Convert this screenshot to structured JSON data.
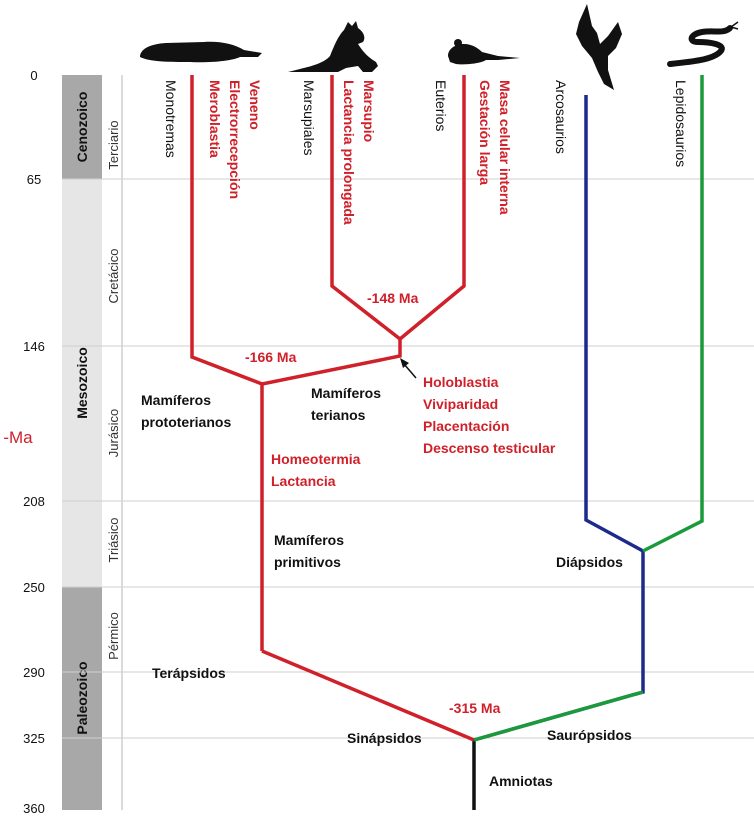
{
  "axis": {
    "title": "-Ma",
    "ticks": [
      "0",
      "65",
      "146",
      "208",
      "250",
      "290",
      "325",
      "360"
    ]
  },
  "eras": [
    "Cenozoico",
    "Mesozoico",
    "Paleozoico"
  ],
  "periods": [
    "Terciario",
    "Cretácico",
    "Jurásico",
    "Triásico",
    "Pérmico"
  ],
  "taxa": {
    "monotremas": "Monotremas",
    "marsupiales": "Marsupiales",
    "euterios": "Euterios",
    "arcosaurios": "Arcosaurios",
    "lepidosaurios": "Lepidosaurios"
  },
  "traits": {
    "monotremas": [
      "Veneno",
      "Electrorrecepción",
      "Meroblastia"
    ],
    "marsupiales": [
      "Marsupio",
      "Lactancia prolongada"
    ],
    "euterios": [
      "Masa celular interna",
      "Gestación larga"
    ],
    "terianos": [
      "Holoblastia",
      "Viviparidad",
      "Placentación",
      "Descenso testicular"
    ],
    "mamiferos": [
      "Homeotermia",
      "Lactancia"
    ]
  },
  "nodes": {
    "prototerianos": [
      "Mamíferos",
      "prototerianos"
    ],
    "terianos": [
      "Mamíferos",
      "terianos"
    ],
    "primitivos": [
      "Mamíferos",
      "primitivos"
    ],
    "terapsidos": "Terápsidos",
    "sinapsidos": "Sinápsidos",
    "sauropsidos": "Saurópsidos",
    "diapsidos": "Diápsidos",
    "amniotas": "Amniotas"
  },
  "dates": {
    "euterios_marsupiales": "-148 Ma",
    "mamiferos": "-166 Ma",
    "amniotas": "-315 Ma"
  },
  "icons": [
    "platypus-icon",
    "wallaby-icon",
    "rat-icon",
    "bird-icon",
    "snake-icon"
  ],
  "colors": {
    "synapsid": "#d0202a",
    "archosaur": "#1b2a8c",
    "lepidosaur": "#1a9a3a",
    "amniote": "#111111",
    "era_dark": "#a8a8a8",
    "era_light": "#e6e6e6"
  }
}
